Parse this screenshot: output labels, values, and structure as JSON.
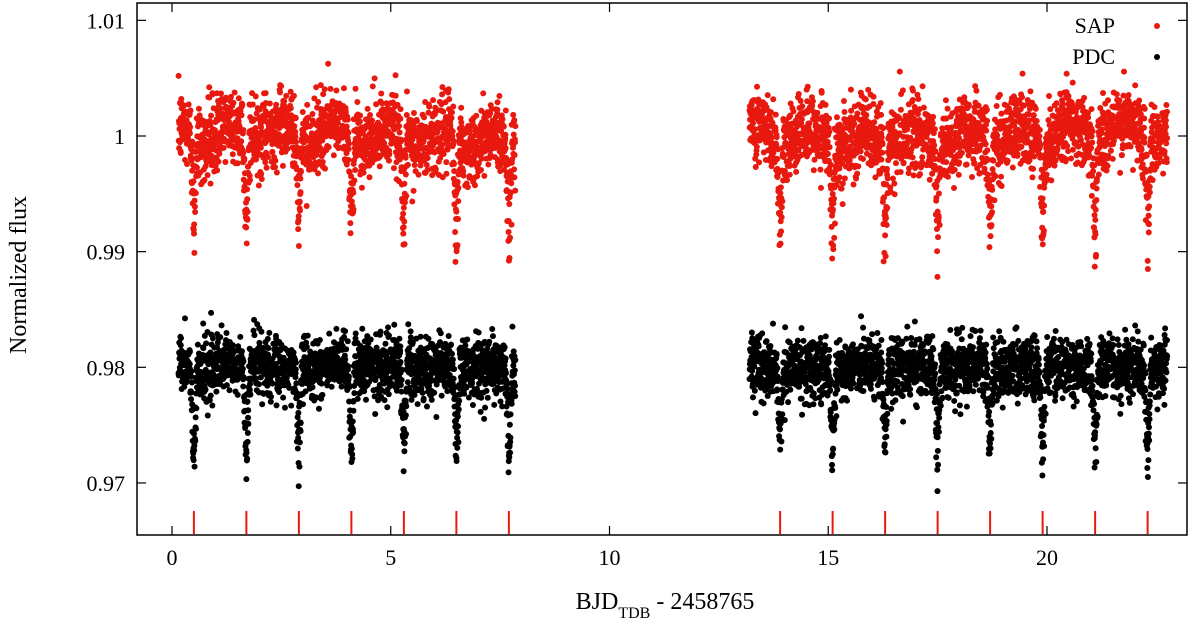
{
  "chart_data": {
    "type": "scatter",
    "xlabel": {
      "main": "BJD",
      "sub": "TDB",
      "rest": " - 2458765"
    },
    "ylabel": "Normalized flux",
    "xlim": [
      -0.8,
      23.2
    ],
    "ylim": [
      0.9655,
      1.0115
    ],
    "x_ticks": [
      0,
      5,
      10,
      15,
      20
    ],
    "x_tick_labels": [
      "0",
      "5",
      "10",
      "15",
      "20"
    ],
    "y_ticks": [
      0.97,
      0.98,
      0.99,
      1.0,
      1.01
    ],
    "y_tick_labels": [
      "0.97",
      "0.98",
      "0.99",
      "1",
      "1.01"
    ],
    "grid": false,
    "legend": "top-right",
    "series": [
      {
        "name": "SAP",
        "color": "#e8190f",
        "baseline": 1.0,
        "scatter": 0.0016,
        "transit_depth": 0.0085,
        "segments": [
          [
            0.15,
            7.85
          ],
          [
            13.2,
            22.75
          ]
        ],
        "variability_amp": 0.0012
      },
      {
        "name": "PDC",
        "color": "#000000",
        "baseline": 0.98,
        "scatter": 0.0013,
        "transit_depth": 0.0085,
        "segments": [
          [
            0.15,
            7.85
          ],
          [
            13.2,
            22.75
          ]
        ],
        "variability_amp": 0.0
      }
    ],
    "transit_times": [
      0.5,
      1.7,
      2.9,
      4.1,
      5.3,
      6.5,
      7.7,
      13.9,
      15.1,
      16.3,
      17.5,
      18.7,
      19.9,
      21.1,
      22.3
    ],
    "transit_marker_color": "#e8190f"
  }
}
